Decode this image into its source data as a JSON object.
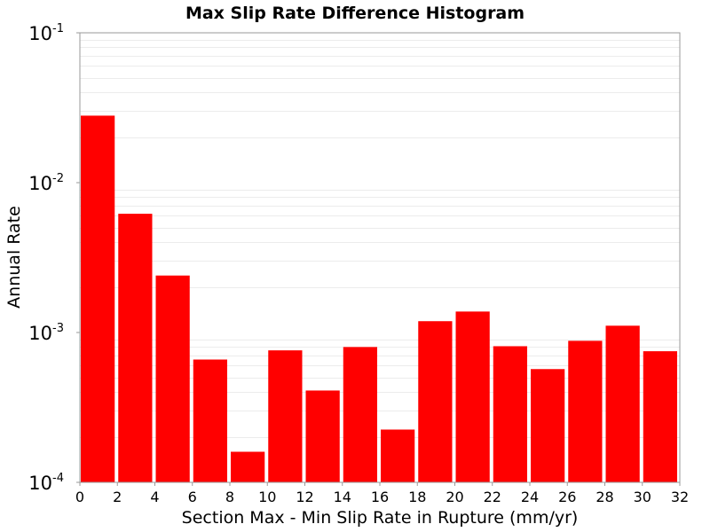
{
  "chart_data": {
    "type": "bar",
    "title": "Max Slip Rate Difference Histogram",
    "xlabel": "Section Max - Min Slip Rate in Rupture (mm/yr)",
    "ylabel": "Annual Rate",
    "y_scale": "log",
    "xlim": [
      0,
      32
    ],
    "ylim": [
      0.0001,
      0.1
    ],
    "x_ticks": [
      "0",
      "2",
      "4",
      "6",
      "8",
      "10",
      "12",
      "14",
      "16",
      "18",
      "20",
      "22",
      "24",
      "26",
      "28",
      "30",
      "32"
    ],
    "y_ticks": [
      {
        "value": 0.0001,
        "base": "10",
        "exp": "-4"
      },
      {
        "value": 0.001,
        "base": "10",
        "exp": "-3"
      },
      {
        "value": 0.01,
        "base": "10",
        "exp": "-2"
      },
      {
        "value": 0.1,
        "base": "10",
        "exp": "-1"
      }
    ],
    "bin_width": 2,
    "bin_starts": [
      0,
      2,
      4,
      6,
      8,
      10,
      12,
      14,
      16,
      18,
      20,
      22,
      24,
      26,
      28,
      30
    ],
    "values": [
      0.028,
      0.0062,
      0.0024,
      0.00066,
      0.00016,
      0.00076,
      0.00041,
      0.0008,
      0.000225,
      0.00119,
      0.00138,
      0.00081,
      0.00057,
      0.00088,
      0.00111,
      0.00075
    ],
    "bar_color": "#ff0000",
    "grid": true
  }
}
